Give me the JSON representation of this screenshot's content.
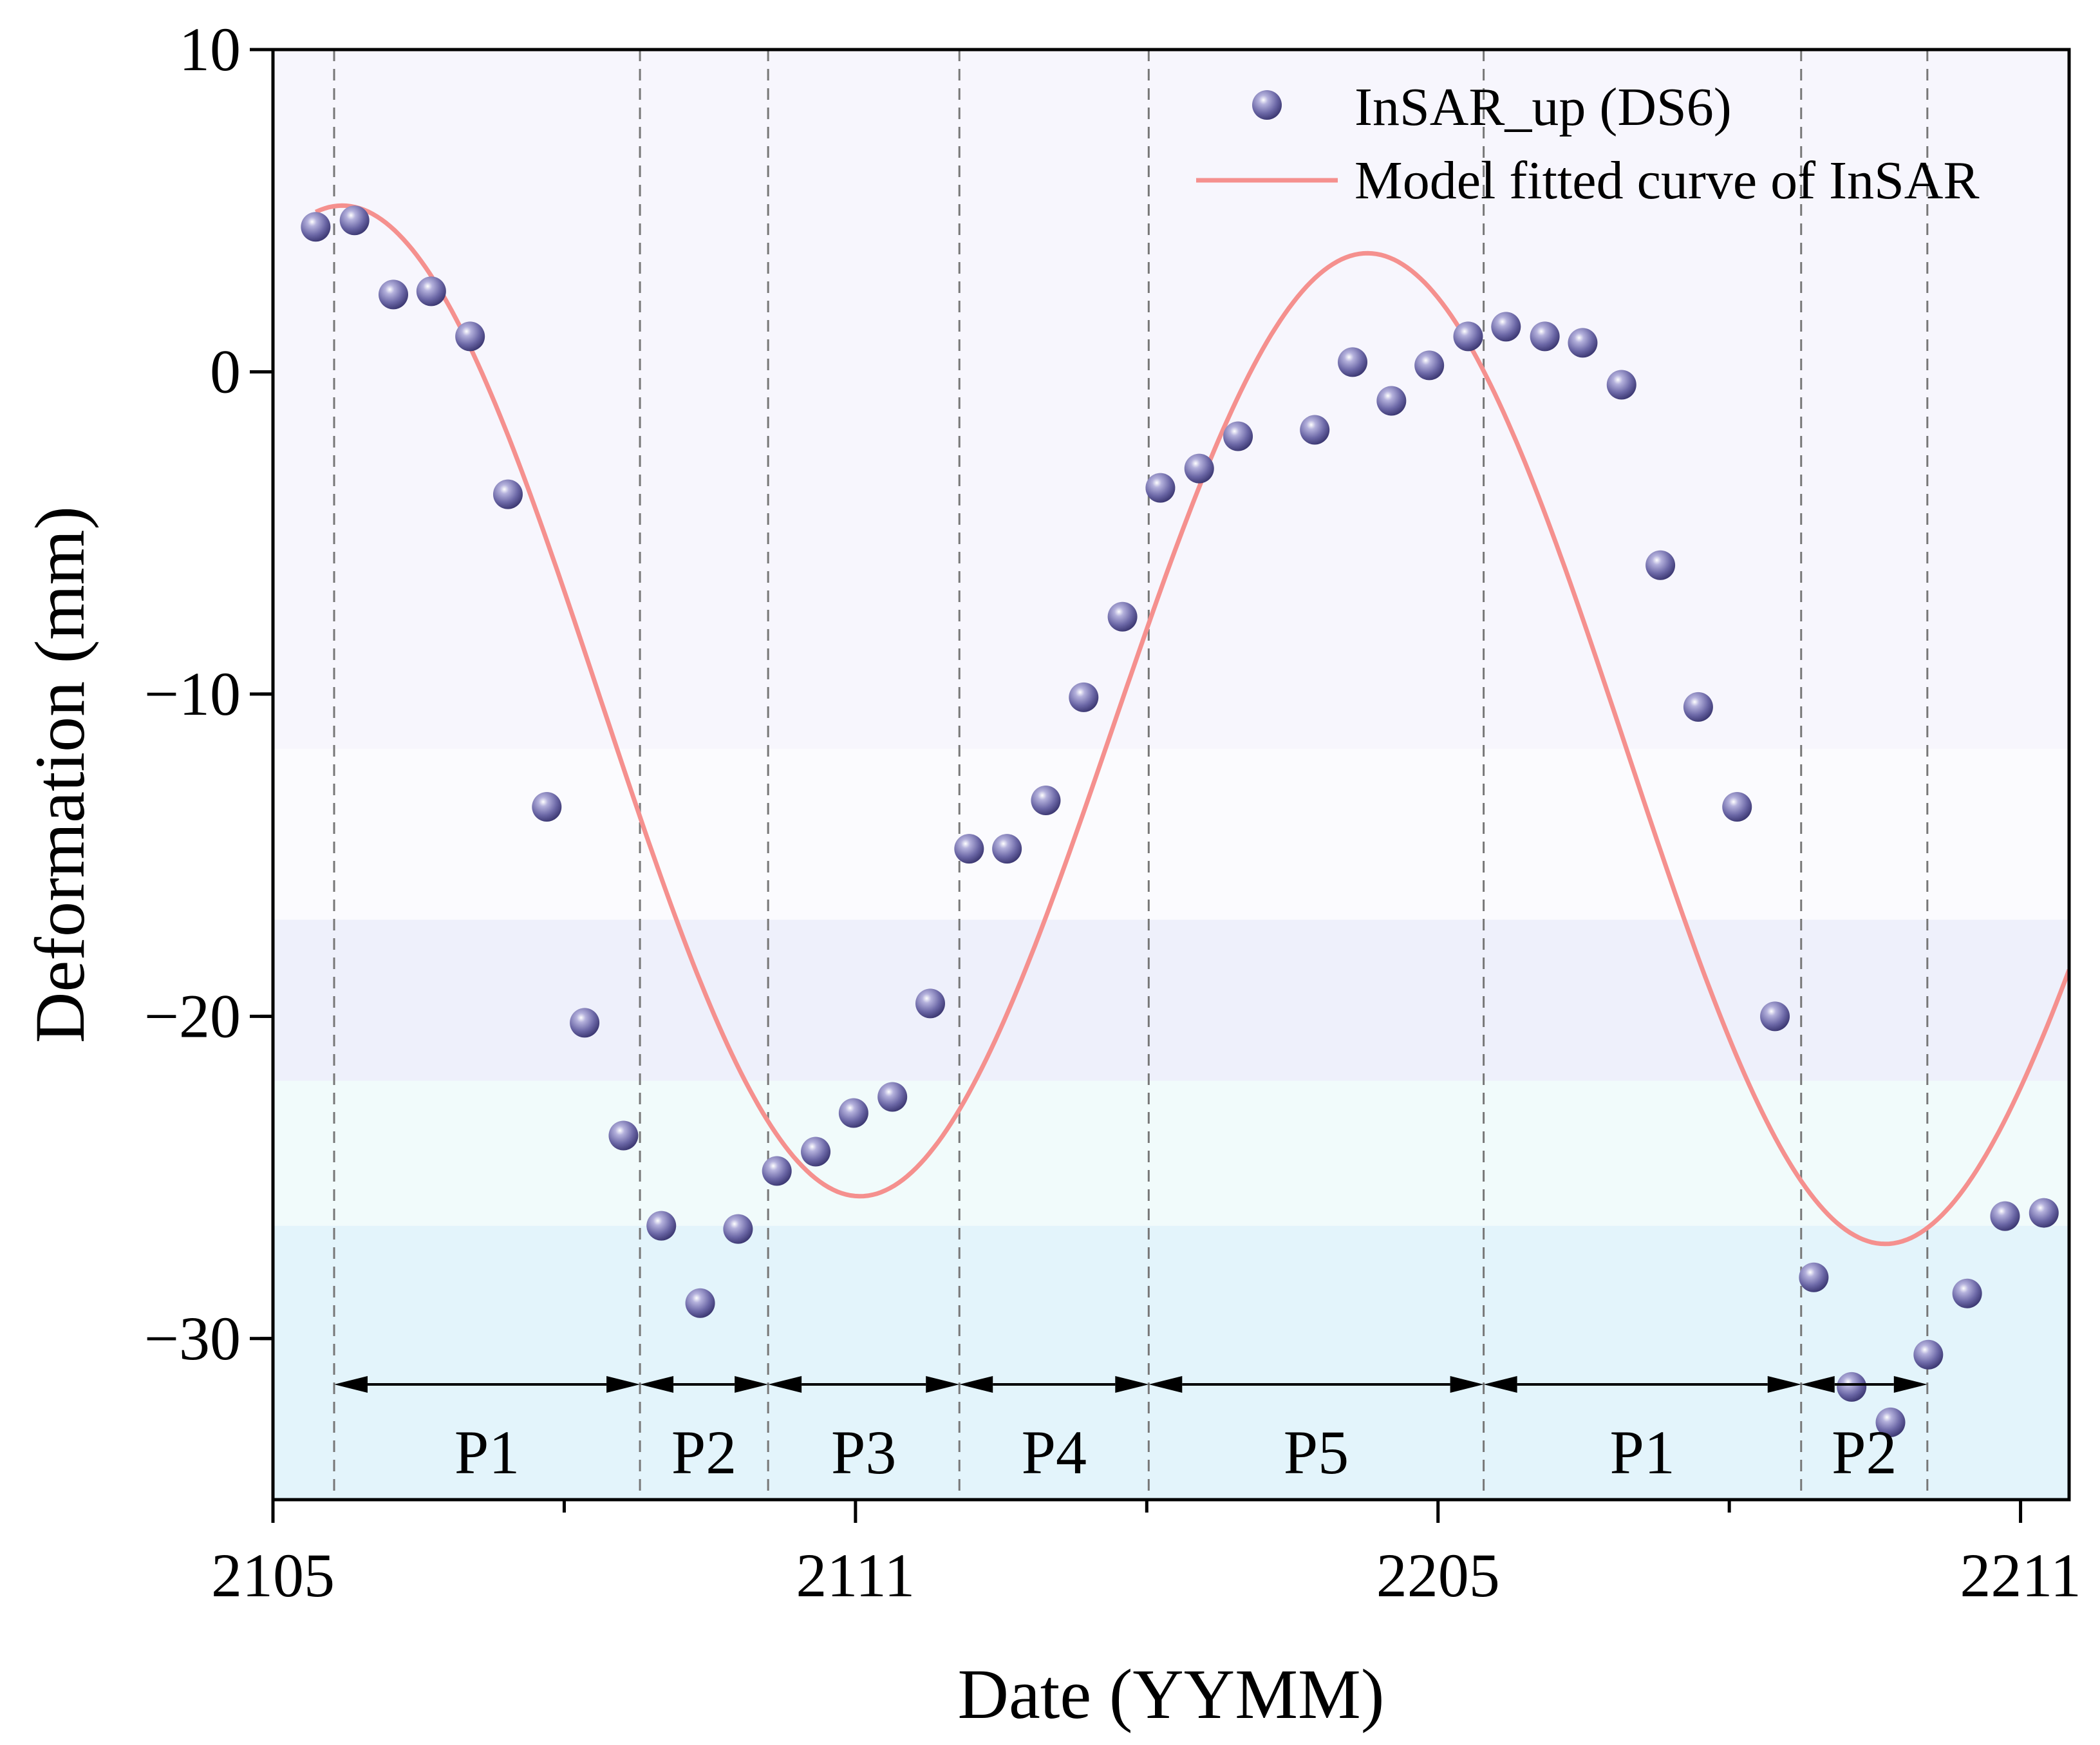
{
  "chart_data": {
    "type": "scatter",
    "xlabel": "Date (YYMM)",
    "ylabel": "Deformation (mm)",
    "xlim": [
      0,
      18.5
    ],
    "ylim": [
      -35,
      10
    ],
    "x_ticks": [
      {
        "pos": 0,
        "label": "2105"
      },
      {
        "pos": 6,
        "label": "2111"
      },
      {
        "pos": 12,
        "label": "2205"
      },
      {
        "pos": 18,
        "label": "2211"
      }
    ],
    "x_minor_ticks": [
      3,
      9,
      15
    ],
    "y_ticks": [
      {
        "value": 10,
        "label": "10"
      },
      {
        "value": 0,
        "label": "0"
      },
      {
        "value": -10,
        "label": "−10"
      },
      {
        "value": -20,
        "label": "−20"
      },
      {
        "value": -30,
        "label": "−30"
      }
    ],
    "series": [
      {
        "name": "InSAR_up (DS6)",
        "kind": "scatter",
        "color": "#6e6aa6",
        "x": [
          0.44,
          0.84,
          1.24,
          1.63,
          2.03,
          2.42,
          2.82,
          3.21,
          3.61,
          4.0,
          4.4,
          4.79,
          5.19,
          5.59,
          5.98,
          6.38,
          6.77,
          7.17,
          7.56,
          7.96,
          8.35,
          8.75,
          9.14,
          9.54,
          9.94,
          10.73,
          11.12,
          11.52,
          11.91,
          12.31,
          12.7,
          13.1,
          13.49,
          13.89,
          14.29,
          14.68,
          15.08,
          15.47,
          15.87,
          16.26,
          16.66,
          17.05,
          17.45,
          17.84,
          18.24
        ],
        "values": [
          4.5,
          4.7,
          2.4,
          2.5,
          1.1,
          -3.8,
          -13.5,
          -20.2,
          -23.7,
          -26.5,
          -28.9,
          -26.6,
          -24.8,
          -24.2,
          -23.0,
          -22.5,
          -19.6,
          -14.8,
          -14.8,
          -13.3,
          -10.1,
          -7.6,
          -3.6,
          -3.0,
          -2.0,
          -1.8,
          0.3,
          -0.9,
          0.2,
          1.1,
          1.4,
          1.1,
          0.9,
          -0.4,
          -6.0,
          -10.4,
          -13.5,
          -20.0,
          -28.1,
          -31.5,
          -32.6,
          -30.5,
          -28.6,
          -26.2,
          -26.1
        ]
      },
      {
        "name": "Model fitted curve of InSAR",
        "kind": "line",
        "color": "#f5908e",
        "model": {
          "mean": -11.0,
          "amplitude": 15.0,
          "peak_x": 11.3,
          "period": 10.56,
          "trend_per_unit": -0.14
        }
      }
    ],
    "periods": [
      {
        "label": "P1",
        "from": 0.63,
        "to": 3.78
      },
      {
        "label": "P2",
        "from": 3.78,
        "to": 5.1
      },
      {
        "label": "P3",
        "from": 5.1,
        "to": 7.07
      },
      {
        "label": "P4",
        "from": 7.07,
        "to": 9.02
      },
      {
        "label": "P5",
        "from": 9.02,
        "to": 12.47
      },
      {
        "label": "P1",
        "from": 12.47,
        "to": 15.74
      },
      {
        "label": "P2",
        "from": 15.74,
        "to": 17.04
      }
    ],
    "background_bands": [
      {
        "from": -35,
        "to": -26.5,
        "color": "#e3f4fb"
      },
      {
        "from": -26.5,
        "to": -22,
        "color": "#f1fbfb"
      },
      {
        "from": -22,
        "to": -17,
        "color": "#eef0fb"
      },
      {
        "from": -17,
        "to": -11.7,
        "color": "#fbfbfe"
      },
      {
        "from": -11.7,
        "to": 10,
        "color": "#f7f6fd"
      }
    ]
  }
}
